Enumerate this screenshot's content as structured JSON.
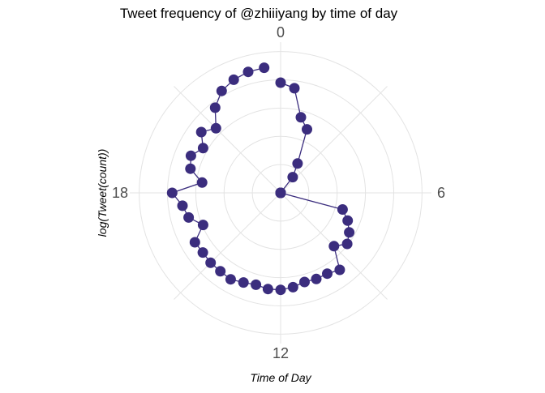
{
  "chart_data": {
    "type": "line",
    "coord": "polar",
    "title": "Tweet frequency of @zhiiiyang by time of day",
    "xlabel": "Time of Day",
    "ylabel": "log(Tweet(count))",
    "x_tick_labels": [
      "0",
      "6",
      "12",
      "18"
    ],
    "x_ticks": [
      0,
      6,
      12,
      18
    ],
    "x_period": 24,
    "ylim": [
      0,
      8
    ],
    "grid": true,
    "legend": "none",
    "colors": {
      "series": "#3b2d7e",
      "grid": "#e3e3e3",
      "tick_text": "#4d4d4d",
      "title_text": "#000000"
    },
    "series": [
      {
        "x": [
          0,
          0.5,
          1,
          1.5,
          2,
          2.5,
          3,
          3.5,
          4,
          4.5,
          5,
          5.5,
          6,
          6.5,
          7,
          7.5,
          8,
          8.5,
          9,
          9.5,
          10,
          10.5,
          11,
          11.5,
          12,
          12.5,
          13,
          13.5,
          14,
          14.5,
          15,
          15.5,
          16,
          16.5,
          17,
          17.5,
          18,
          18.5,
          19,
          19.5,
          20,
          20.5,
          21,
          21.5,
          22,
          22.5,
          23,
          23.5
        ],
        "y": [
          5.85,
          5.6,
          4.15,
          3.65,
          1.8,
          1.05,
          0,
          0,
          0,
          0,
          0,
          0,
          0,
          0,
          3.4,
          3.85,
          4.2,
          4.45,
          4.0,
          5.15,
          4.95,
          4.95,
          4.9,
          5.05,
          5.15,
          5.15,
          5.05,
          5.15,
          5.3,
          5.25,
          5.25,
          5.2,
          5.25,
          4.45,
          5.05,
          5.25,
          5.75,
          4.2,
          4.95,
          5.15,
          4.75,
          5.3,
          4.85,
          5.7,
          6.25,
          6.5,
          6.65,
          6.7
        ]
      }
    ]
  }
}
